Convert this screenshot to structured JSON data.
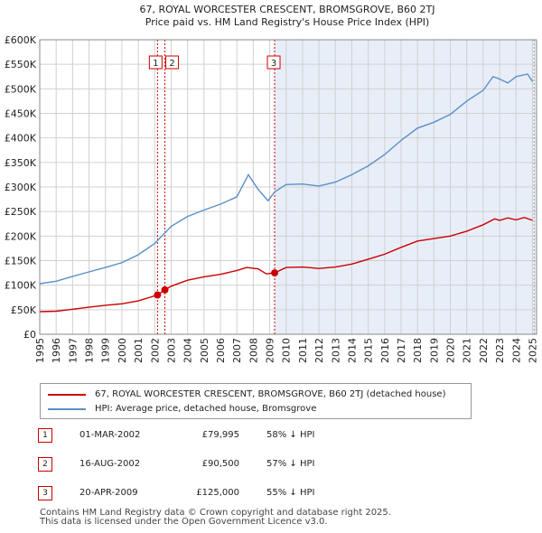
{
  "chart_data": {
    "type": "line",
    "title": "67, ROYAL WORCESTER CRESCENT, BROMSGROVE, B60 2TJ",
    "subtitle": "Price paid vs. HM Land Registry's House Price Index (HPI)",
    "xlim": [
      1995,
      2025.25
    ],
    "ylim": [
      0,
      600000
    ],
    "x_ticks": [
      "1995",
      "1996",
      "1997",
      "1998",
      "1999",
      "2000",
      "2001",
      "2002",
      "2003",
      "2004",
      "2005",
      "2006",
      "2007",
      "2008",
      "2009",
      "2010",
      "2011",
      "2012",
      "2013",
      "2014",
      "2015",
      "2016",
      "2017",
      "2018",
      "2019",
      "2020",
      "2021",
      "2022",
      "2023",
      "2024",
      "2025"
    ],
    "y_ticks": [
      {
        "value": 0,
        "label": "£0"
      },
      {
        "value": 50000,
        "label": "£50K"
      },
      {
        "value": 100000,
        "label": "£100K"
      },
      {
        "value": 150000,
        "label": "£150K"
      },
      {
        "value": 200000,
        "label": "£200K"
      },
      {
        "value": 250000,
        "label": "£250K"
      },
      {
        "value": 300000,
        "label": "£300K"
      },
      {
        "value": 350000,
        "label": "£350K"
      },
      {
        "value": 400000,
        "label": "£400K"
      },
      {
        "value": 450000,
        "label": "£450K"
      },
      {
        "value": 500000,
        "label": "£500K"
      },
      {
        "value": 550000,
        "label": "£550K"
      },
      {
        "value": 600000,
        "label": "£600K"
      }
    ],
    "shaded_after": 2009.3,
    "series": [
      {
        "name": "67, ROYAL WORCESTER CRESCENT, BROMSGROVE, B60 2TJ (detached house)",
        "color": "#cc0000",
        "points": [
          [
            1995,
            46000
          ],
          [
            1996,
            47000
          ],
          [
            1997,
            51000
          ],
          [
            1998,
            55000
          ],
          [
            1999,
            59000
          ],
          [
            2000,
            62000
          ],
          [
            2001,
            68000
          ],
          [
            2002.17,
            79995
          ],
          [
            2002.62,
            90500
          ],
          [
            2003,
            98000
          ],
          [
            2004,
            110000
          ],
          [
            2005,
            117000
          ],
          [
            2006,
            122000
          ],
          [
            2007,
            130000
          ],
          [
            2007.6,
            136000
          ],
          [
            2008.3,
            133000
          ],
          [
            2008.8,
            123000
          ],
          [
            2009.3,
            125000
          ],
          [
            2010,
            136000
          ],
          [
            2011,
            137000
          ],
          [
            2012,
            134000
          ],
          [
            2013,
            137000
          ],
          [
            2014,
            143000
          ],
          [
            2015,
            153000
          ],
          [
            2016,
            163000
          ],
          [
            2017,
            177000
          ],
          [
            2018,
            190000
          ],
          [
            2019,
            195000
          ],
          [
            2020,
            200000
          ],
          [
            2021,
            210000
          ],
          [
            2022,
            223000
          ],
          [
            2022.7,
            235000
          ],
          [
            2023,
            232000
          ],
          [
            2023.5,
            237000
          ],
          [
            2024,
            233000
          ],
          [
            2024.5,
            238000
          ],
          [
            2025,
            232000
          ]
        ]
      },
      {
        "name": "HPI: Average price, detached house, Bromsgrove",
        "color": "#5b8fc9",
        "points": [
          [
            1995,
            103000
          ],
          [
            1996,
            108000
          ],
          [
            1997,
            118000
          ],
          [
            1998,
            127000
          ],
          [
            1999,
            136000
          ],
          [
            2000,
            146000
          ],
          [
            2001,
            162000
          ],
          [
            2002,
            185000
          ],
          [
            2003,
            220000
          ],
          [
            2004,
            240000
          ],
          [
            2005,
            253000
          ],
          [
            2006,
            265000
          ],
          [
            2007,
            280000
          ],
          [
            2007.7,
            325000
          ],
          [
            2008.3,
            295000
          ],
          [
            2008.9,
            272000
          ],
          [
            2009.3,
            290000
          ],
          [
            2010,
            305000
          ],
          [
            2011,
            306000
          ],
          [
            2012,
            302000
          ],
          [
            2013,
            310000
          ],
          [
            2014,
            325000
          ],
          [
            2015,
            343000
          ],
          [
            2016,
            366000
          ],
          [
            2017,
            395000
          ],
          [
            2018,
            420000
          ],
          [
            2019,
            432000
          ],
          [
            2020,
            448000
          ],
          [
            2021,
            475000
          ],
          [
            2022,
            497000
          ],
          [
            2022.6,
            525000
          ],
          [
            2023,
            520000
          ],
          [
            2023.5,
            512000
          ],
          [
            2024,
            525000
          ],
          [
            2024.7,
            530000
          ],
          [
            2025,
            515000
          ]
        ]
      }
    ],
    "sales": [
      {
        "id": "1",
        "x": 2002.17,
        "value": 79995
      },
      {
        "id": "2",
        "x": 2002.62,
        "value": 90500
      },
      {
        "id": "3",
        "x": 2009.3,
        "value": 125000
      }
    ]
  },
  "legend": {
    "property_label": "67, ROYAL WORCESTER CRESCENT, BROMSGROVE, B60 2TJ (detached house)",
    "hpi_label": "HPI: Average price, detached house, Bromsgrove"
  },
  "sales_table": [
    {
      "num": "1",
      "date": "01-MAR-2002",
      "price": "£79,995",
      "hpi": "58% ↓ HPI"
    },
    {
      "num": "2",
      "date": "16-AUG-2002",
      "price": "£90,500",
      "hpi": "57% ↓ HPI"
    },
    {
      "num": "3",
      "date": "20-APR-2009",
      "price": "£125,000",
      "hpi": "55% ↓ HPI"
    }
  ],
  "footer": {
    "line1": "Contains HM Land Registry data © Crown copyright and database right 2025.",
    "line2": "This data is licensed under the Open Government Licence v3.0."
  },
  "colors": {
    "property": "#cc0000",
    "hpi": "#5b8fc9",
    "shade": "#e8eef8",
    "grid": "#d0d0d0"
  }
}
